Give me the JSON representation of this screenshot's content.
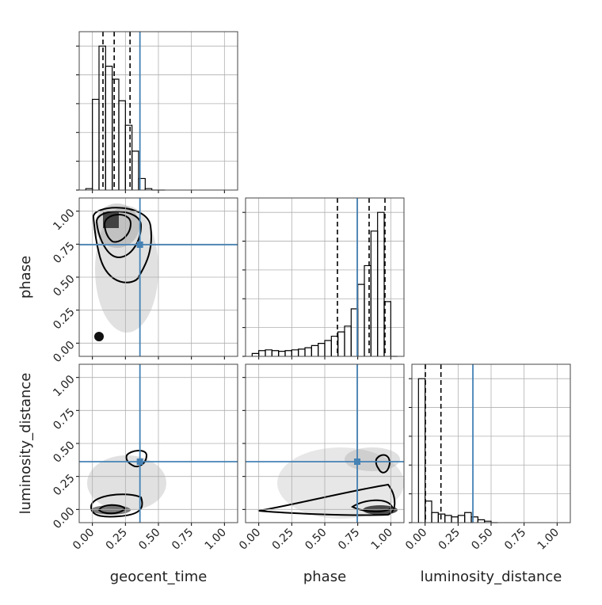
{
  "chart_data": {
    "type": "corner",
    "parameters": [
      "geocent_time",
      "phase",
      "luminosity_distance"
    ],
    "truths": [
      0.36,
      0.746,
      0.362
    ],
    "truth_color": "#4682b4",
    "xlim": [
      -0.1,
      1.1
    ],
    "ticks": [
      {
        "value": 0,
        "label": "0.00"
      },
      {
        "value": 0.25,
        "label": "0.25"
      },
      {
        "value": 0.5,
        "label": "0.50"
      },
      {
        "value": 0.75,
        "label": "0.75"
      },
      {
        "value": 1,
        "label": "1.00"
      }
    ],
    "hist_ylim": [
      0,
      1.1
    ],
    "hist_yticks": [
      0,
      0.2,
      0.4,
      0.6,
      0.8,
      1.0
    ],
    "grid": true,
    "histograms": [
      {
        "bins": [
          -0.05,
          0,
          0.05,
          0.1,
          0.15,
          0.2,
          0.25,
          0.3,
          0.35,
          0.4,
          0.45,
          0.5,
          0.55
        ],
        "counts": [
          0.01,
          0.63,
          1.0,
          0.86,
          0.77,
          0.62,
          0.45,
          0.27,
          0.08,
          0.01,
          0,
          0
        ],
        "quantiles": [
          0.08,
          0.165,
          0.285
        ]
      },
      {
        "bins": [
          -0.05,
          0,
          0.05,
          0.1,
          0.15,
          0.2,
          0.25,
          0.3,
          0.35,
          0.4,
          0.45,
          0.5,
          0.55,
          0.6,
          0.65,
          0.7,
          0.75,
          0.8,
          0.85,
          0.9,
          0.95,
          1.0,
          1.05
        ],
        "counts": [
          0.02,
          0.04,
          0.045,
          0.04,
          0.035,
          0.04,
          0.045,
          0.05,
          0.06,
          0.075,
          0.09,
          0.11,
          0.14,
          0.17,
          0.21,
          0.33,
          0.5,
          0.63,
          0.87,
          1.0,
          0.38,
          0
        ],
        "quantiles": [
          0.596,
          0.836,
          0.956
        ]
      },
      {
        "bins": [
          -0.05,
          0,
          0.05,
          0.1,
          0.15,
          0.2,
          0.25,
          0.3,
          0.35,
          0.4,
          0.45,
          0.5,
          0.55
        ],
        "counts": [
          1.0,
          0.15,
          0.07,
          0.06,
          0.05,
          0.04,
          0.05,
          0.07,
          0.04,
          0.02,
          0.01,
          0
        ],
        "quantiles": [
          0.002,
          0.12
        ]
      }
    ]
  }
}
